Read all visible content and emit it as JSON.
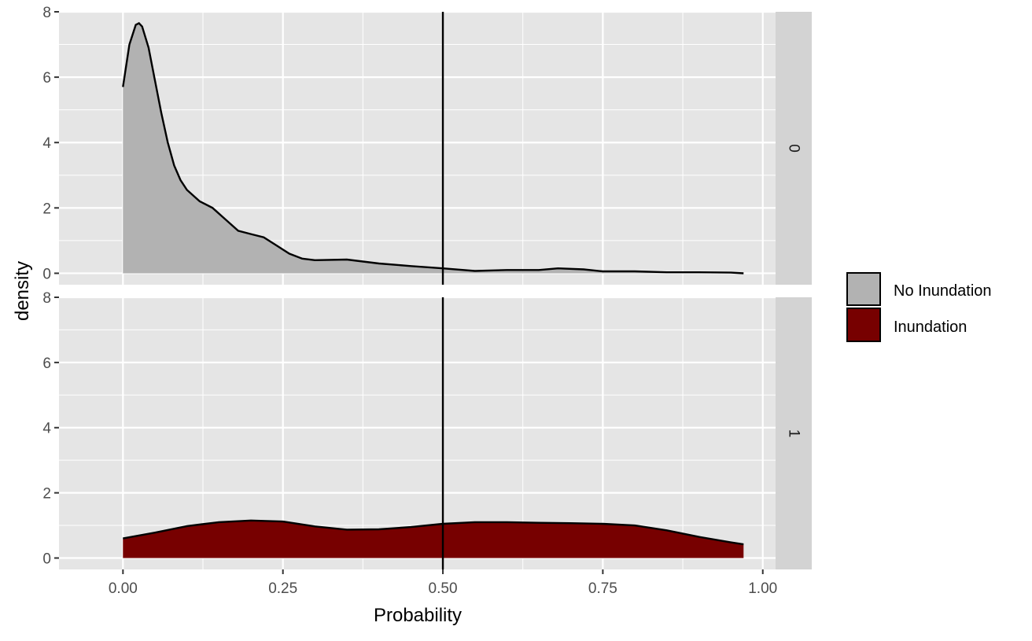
{
  "chart_data": {
    "type": "area",
    "xlabel": "Probability",
    "ylabel": "density",
    "xlim": [
      -0.1,
      1.02
    ],
    "ylim": [
      -0.35,
      8.0
    ],
    "x_ticks": [
      0.0,
      0.25,
      0.5,
      0.75,
      1.0
    ],
    "x_tick_labels": [
      "0.00",
      "0.25",
      "0.50",
      "0.75",
      "1.00"
    ],
    "y_ticks": [
      0,
      2,
      4,
      6,
      8
    ],
    "y_tick_labels": [
      "0",
      "2",
      "4",
      "6",
      "8"
    ],
    "grid": true,
    "vline": 0.5,
    "legend_position": "right",
    "colors": {
      "panel_bg": "#e5e5e5",
      "grid": "#ffffff",
      "strip_bg": "#d3d3d3",
      "no_inundation": "#b2b2b2",
      "inundation": "#770000",
      "line": "#000000",
      "axis_text": "#4d4d4d",
      "title_text": "#000000"
    },
    "legend": [
      {
        "label": "No Inundation",
        "color": "#b2b2b2"
      },
      {
        "label": "Inundation",
        "color": "#770000"
      }
    ],
    "panels": [
      {
        "strip_label": "0",
        "series_index": 0,
        "x": [
          0.0,
          0.01,
          0.02,
          0.025,
          0.03,
          0.04,
          0.05,
          0.06,
          0.07,
          0.08,
          0.09,
          0.1,
          0.12,
          0.14,
          0.16,
          0.18,
          0.2,
          0.22,
          0.24,
          0.26,
          0.28,
          0.3,
          0.35,
          0.4,
          0.45,
          0.5,
          0.55,
          0.6,
          0.65,
          0.68,
          0.72,
          0.75,
          0.8,
          0.85,
          0.9,
          0.95,
          0.97
        ],
        "y": [
          5.7,
          7.0,
          7.6,
          7.65,
          7.55,
          6.9,
          5.9,
          4.9,
          4.0,
          3.3,
          2.85,
          2.55,
          2.2,
          2.0,
          1.65,
          1.3,
          1.2,
          1.1,
          0.85,
          0.6,
          0.45,
          0.4,
          0.42,
          0.3,
          0.22,
          0.15,
          0.07,
          0.1,
          0.1,
          0.15,
          0.12,
          0.06,
          0.06,
          0.03,
          0.03,
          0.02,
          0.0
        ]
      },
      {
        "strip_label": "1",
        "series_index": 1,
        "x": [
          0.0,
          0.05,
          0.1,
          0.15,
          0.2,
          0.25,
          0.3,
          0.35,
          0.4,
          0.45,
          0.5,
          0.55,
          0.6,
          0.65,
          0.7,
          0.75,
          0.8,
          0.85,
          0.9,
          0.95,
          0.97
        ],
        "y": [
          0.6,
          0.78,
          0.98,
          1.1,
          1.15,
          1.12,
          0.97,
          0.87,
          0.88,
          0.95,
          1.05,
          1.1,
          1.1,
          1.08,
          1.07,
          1.05,
          1.0,
          0.85,
          0.65,
          0.48,
          0.42
        ]
      }
    ]
  }
}
